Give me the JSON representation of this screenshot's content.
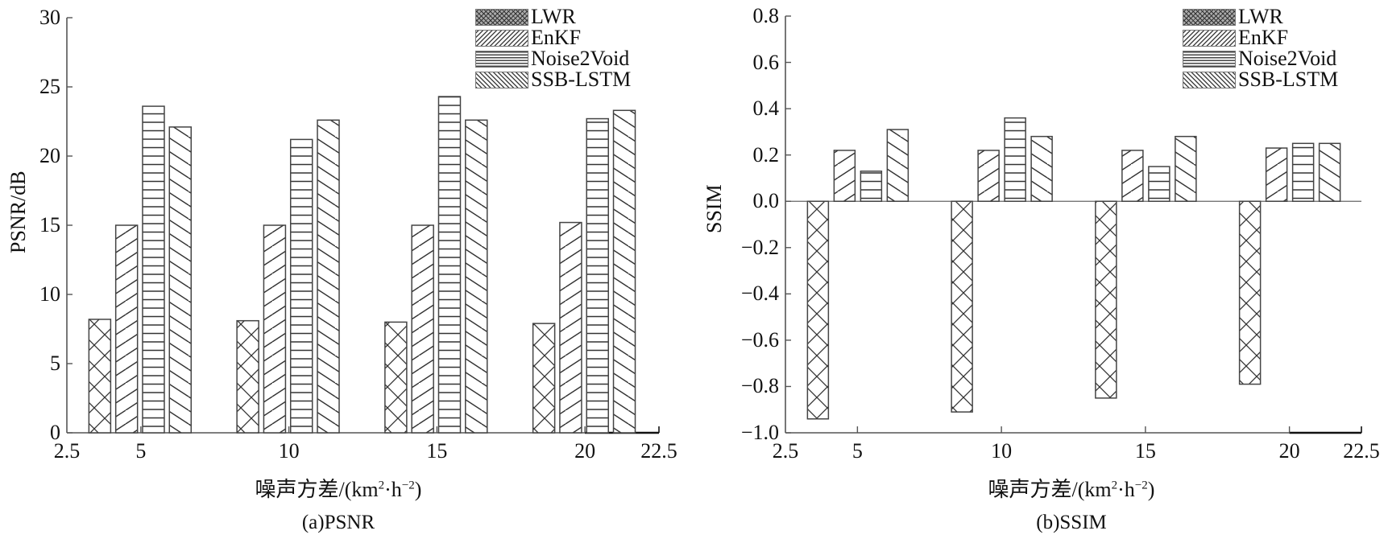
{
  "legend": [
    "LWR",
    "EnKF",
    "Noise2Void",
    "SSB-LSTM"
  ],
  "chart_data": [
    {
      "type": "bar",
      "title": "(a)PSNR",
      "xlabel": "噪声方差/(km²·h⁻²)",
      "xlabel_parts": {
        "main": "噪声方差/(km",
        "sup1": "2",
        "mid": "·h",
        "sup2": "−2",
        "end": ")"
      },
      "ylabel": "PSNR/dB",
      "ylim": [
        0,
        30
      ],
      "yticks": [
        "0",
        "5",
        "10",
        "15",
        "20",
        "25",
        "30"
      ],
      "yticks_values": [
        0,
        5,
        10,
        15,
        20,
        25,
        30
      ],
      "xlim": [
        2.5,
        22.5
      ],
      "xticks": [
        "2.5",
        "5",
        "10",
        "15",
        "20",
        "22.5"
      ],
      "xticks_values": [
        2.5,
        5,
        10,
        15,
        20,
        22.5
      ],
      "categories": [
        5,
        10,
        15,
        20
      ],
      "legend_position": "top-right",
      "series": [
        {
          "name": "LWR",
          "pattern": "crosshatch",
          "values": [
            8.2,
            8.1,
            8.0,
            7.9
          ]
        },
        {
          "name": "EnKF",
          "pattern": "forward-diagonal",
          "values": [
            15.0,
            15.0,
            15.0,
            15.2
          ]
        },
        {
          "name": "Noise2Void",
          "pattern": "horizontal",
          "values": [
            23.6,
            21.2,
            24.3,
            22.7
          ]
        },
        {
          "name": "SSB-LSTM",
          "pattern": "back-diagonal",
          "values": [
            22.1,
            22.6,
            22.6,
            23.3
          ]
        }
      ]
    },
    {
      "type": "bar",
      "title": "(b)SSIM",
      "xlabel": "噪声方差/(km²·h⁻²)",
      "xlabel_parts": {
        "main": "噪声方差/(km",
        "sup1": "2",
        "mid": "·h",
        "sup2": "−2",
        "end": ")"
      },
      "ylabel": "SSIM",
      "ylim": [
        -1.0,
        0.8
      ],
      "yticks": [
        "−1.0",
        "−0.8",
        "−0.6",
        "−0.4",
        "−0.2",
        "0.0",
        "0.2",
        "0.4",
        "0.6",
        "0.8"
      ],
      "yticks_values": [
        -1.0,
        -0.8,
        -0.6,
        -0.4,
        -0.2,
        0.0,
        0.2,
        0.4,
        0.6,
        0.8
      ],
      "xlim": [
        2.5,
        22.5
      ],
      "xticks": [
        "2.5",
        "5",
        "10",
        "15",
        "20",
        "22.5"
      ],
      "xticks_values": [
        2.5,
        5,
        10,
        15,
        20,
        22.5
      ],
      "categories": [
        5,
        10,
        15,
        20
      ],
      "legend_position": "top-right",
      "series": [
        {
          "name": "LWR",
          "pattern": "crosshatch",
          "values": [
            -0.94,
            -0.91,
            -0.85,
            -0.79
          ]
        },
        {
          "name": "EnKF",
          "pattern": "forward-diagonal",
          "values": [
            0.22,
            0.22,
            0.22,
            0.23
          ]
        },
        {
          "name": "Noise2Void",
          "pattern": "horizontal",
          "values": [
            0.13,
            0.36,
            0.15,
            0.25
          ]
        },
        {
          "name": "SSB-LSTM",
          "pattern": "back-diagonal",
          "values": [
            0.31,
            0.28,
            0.28,
            0.25
          ]
        }
      ]
    }
  ]
}
